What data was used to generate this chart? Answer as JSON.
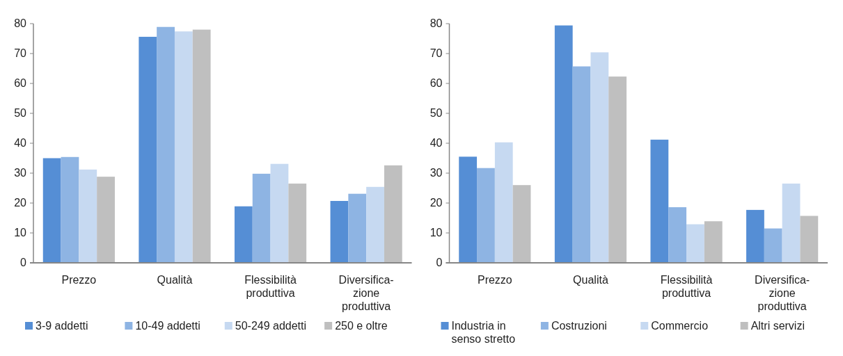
{
  "chart_data": [
    {
      "type": "bar",
      "categories": [
        "Prezzo",
        "Qualità",
        "Flessibilità\nproduttiva",
        "Diversifica-\nzione\nproduttiva"
      ],
      "ylim": [
        0,
        80
      ],
      "yticks": [
        0,
        10,
        20,
        30,
        40,
        50,
        60,
        70,
        80
      ],
      "grid": false,
      "legend": "bottom",
      "series": [
        {
          "name": "3-9 addetti",
          "color": "#558ed5",
          "values": [
            35.0,
            75.6,
            18.9,
            20.7
          ]
        },
        {
          "name": "10-49 addetti",
          "color": "#8eb4e3",
          "values": [
            35.4,
            78.9,
            29.8,
            23.1
          ]
        },
        {
          "name": "50-249 addetti",
          "color": "#c6d9f1",
          "values": [
            31.2,
            77.4,
            33.1,
            25.4
          ]
        },
        {
          "name": "250 e oltre",
          "color": "#bfbfbf",
          "values": [
            28.8,
            78.0,
            26.5,
            32.6
          ]
        }
      ]
    },
    {
      "type": "bar",
      "categories": [
        "Prezzo",
        "Qualità",
        "Flessibilità\nproduttiva",
        "Diversifica-\nzione\nproduttiva"
      ],
      "ylim": [
        0,
        80
      ],
      "yticks": [
        0,
        10,
        20,
        30,
        40,
        50,
        60,
        70,
        80
      ],
      "grid": false,
      "legend": "bottom",
      "series": [
        {
          "name": "Industria in\nsenso stretto",
          "color": "#558ed5",
          "values": [
            35.5,
            79.4,
            41.2,
            17.7
          ]
        },
        {
          "name": "Costruzioni",
          "color": "#8eb4e3",
          "values": [
            31.7,
            65.7,
            18.6,
            11.5
          ]
        },
        {
          "name": "Commercio",
          "color": "#c6d9f1",
          "values": [
            40.3,
            70.4,
            12.9,
            26.5
          ]
        },
        {
          "name": "Altri servizi",
          "color": "#bfbfbf",
          "values": [
            26.0,
            62.3,
            13.9,
            15.7
          ]
        }
      ]
    }
  ]
}
